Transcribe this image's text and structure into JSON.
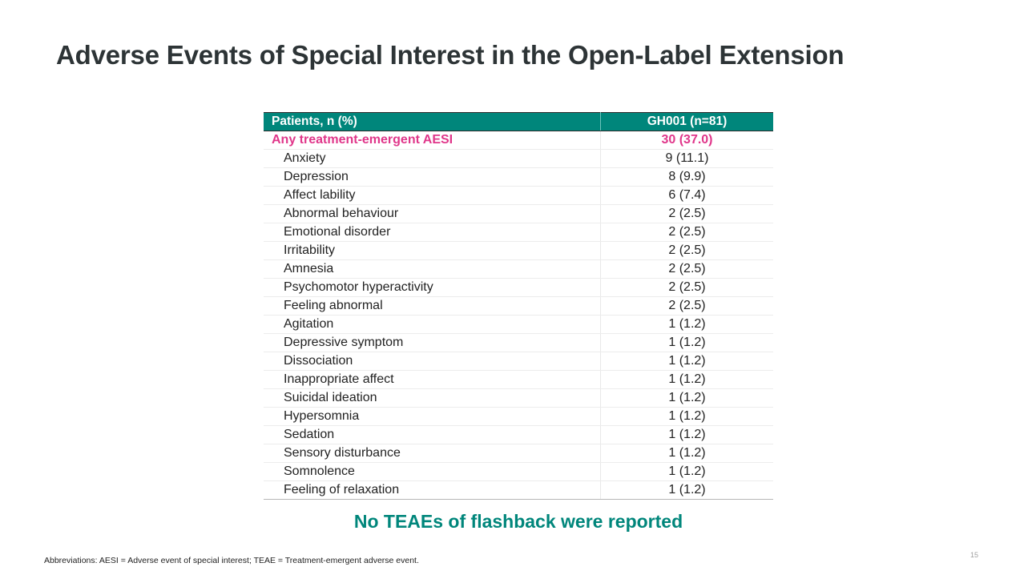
{
  "slide": {
    "title": "Adverse Events of Special Interest in the Open-Label Extension",
    "page_number": "15"
  },
  "table": {
    "header": {
      "col1": "Patients, n (%)",
      "col2": "GH001 (n=81)"
    },
    "total_row": {
      "label": "Any treatment-emergent AESI",
      "value": "30 (37.0)"
    },
    "rows": [
      {
        "label": "Anxiety",
        "value": "9 (11.1)"
      },
      {
        "label": "Depression",
        "value": "8 (9.9)"
      },
      {
        "label": "Affect lability",
        "value": "6 (7.4)"
      },
      {
        "label": "Abnormal behaviour",
        "value": "2 (2.5)"
      },
      {
        "label": "Emotional disorder",
        "value": "2 (2.5)"
      },
      {
        "label": "Irritability",
        "value": "2 (2.5)"
      },
      {
        "label": "Amnesia",
        "value": "2 (2.5)"
      },
      {
        "label": "Psychomotor hyperactivity",
        "value": "2 (2.5)"
      },
      {
        "label": "Feeling abnormal",
        "value": "2 (2.5)"
      },
      {
        "label": "Agitation",
        "value": "1 (1.2)"
      },
      {
        "label": "Depressive symptom",
        "value": "1 (1.2)"
      },
      {
        "label": "Dissociation",
        "value": "1 (1.2)"
      },
      {
        "label": "Inappropriate affect",
        "value": "1 (1.2)"
      },
      {
        "label": "Suicidal ideation",
        "value": "1 (1.2)"
      },
      {
        "label": "Hypersomnia",
        "value": "1 (1.2)"
      },
      {
        "label": "Sedation",
        "value": "1 (1.2)"
      },
      {
        "label": "Sensory disturbance",
        "value": "1 (1.2)"
      },
      {
        "label": "Somnolence",
        "value": "1 (1.2)"
      },
      {
        "label": "Feeling of relaxation",
        "value": "1 (1.2)"
      }
    ]
  },
  "callout": "No TEAEs of flashback were reported",
  "footnote": "Abbreviations: AESI = Adverse event of special interest; TEAE = Treatment-emergent adverse event.",
  "colors": {
    "header_bg": "#00867b",
    "highlight": "#e0368a",
    "callout": "#00867b",
    "title": "#2d3436"
  }
}
